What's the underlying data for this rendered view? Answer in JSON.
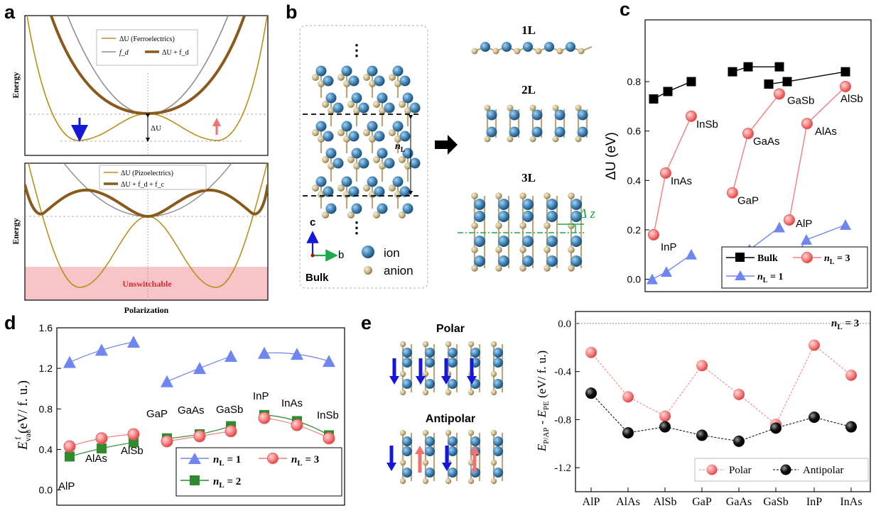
{
  "panels": {
    "a": {
      "label": "a",
      "top": {
        "ylabel": "Energy",
        "legend": [
          "ΔU (Ferroelectrics)",
          "f_d",
          "ΔU + f_d"
        ],
        "delta_label": "ΔU"
      },
      "bottom": {
        "ylabel": "Energy",
        "legend": [
          "ΔU (Pizoelectrics)",
          "ΔU + f_d + f_c"
        ],
        "unswitchable": "Unswitchable",
        "xlabel": "Polarization"
      }
    },
    "b": {
      "label": "b",
      "layers": [
        "1L",
        "2L",
        "3L"
      ],
      "nl": "n_L",
      "dz": "Δ z",
      "axis_c": "c",
      "axis_b": "b",
      "legend_ion": "ion",
      "legend_anion": "anion",
      "bulk": "Bulk",
      "ellipsis": "⋮"
    },
    "c": {
      "label": "c",
      "ylabel": "ΔU (eV)",
      "legend": [
        "Bulk",
        "n_L = 3",
        "n_L = 1"
      ],
      "point_labels": [
        "InP",
        "InAs",
        "InSb",
        "GaP",
        "GaAs",
        "GaSb",
        "AlP",
        "AlAs",
        "AlSb"
      ]
    },
    "d": {
      "label": "d",
      "ylabel": "E_vac^f (eV/ f. u.)",
      "legend": [
        "n_L = 1",
        "n_L = 3",
        "n_L = 2"
      ],
      "point_labels": [
        "AlP",
        "AlAs",
        "AlSb",
        "GaP",
        "GaAs",
        "GaSb",
        "InP",
        "InAs",
        "InSb"
      ]
    },
    "e": {
      "label": "e",
      "polar": "Polar",
      "antipolar": "Antipolar",
      "ylabel": "E_P/AP - E_PE (eV/ f. u.)",
      "nl": "n_L = 3",
      "legend": [
        "Polar",
        "Antipolar"
      ]
    }
  },
  "chart_data": [
    {
      "panel": "c",
      "type": "line",
      "ylabel": "ΔU (eV)",
      "ylim": [
        -0.05,
        1.05
      ],
      "yticks": [
        "0.0",
        "0.2",
        "0.4",
        "0.6",
        "0.8"
      ],
      "series": [
        {
          "name": "Bulk",
          "groups": [
            {
              "materials": [
                "InP",
                "InAs",
                "InSb"
              ],
              "values": [
                0.73,
                0.76,
                0.8
              ]
            },
            {
              "materials": [
                "GaP",
                "GaAs",
                "GaSb"
              ],
              "values": [
                0.84,
                0.86,
                0.86
              ]
            },
            {
              "materials": [
                "AlP",
                "AlAs",
                "AlSb"
              ],
              "values": [
                0.79,
                0.8,
                0.84
              ]
            }
          ]
        },
        {
          "name": "n_L = 3",
          "groups": [
            {
              "materials": [
                "InP",
                "InAs",
                "InSb"
              ],
              "values": [
                0.18,
                0.43,
                0.66
              ]
            },
            {
              "materials": [
                "GaP",
                "GaAs",
                "GaSb"
              ],
              "values": [
                0.35,
                0.59,
                0.75
              ]
            },
            {
              "materials": [
                "AlP",
                "AlAs",
                "AlSb"
              ],
              "values": [
                0.24,
                0.63,
                0.78
              ]
            }
          ]
        },
        {
          "name": "n_L = 1",
          "groups": [
            {
              "materials": [
                "InP",
                "InAs",
                "InSb"
              ],
              "values": [
                0.0,
                0.03,
                0.1
              ]
            },
            {
              "materials": [
                "GaP",
                "GaAs",
                "GaSb"
              ],
              "values": [
                0.02,
                0.12,
                0.21
              ]
            },
            {
              "materials": [
                "AlP",
                "AlAs",
                "AlSb"
              ],
              "values": [
                0.05,
                0.16,
                0.22
              ]
            }
          ]
        }
      ]
    },
    {
      "panel": "d",
      "type": "line",
      "ylabel": "E_vac^f (eV/ f. u.)",
      "ylim": [
        -0.15,
        1.6
      ],
      "yticks": [
        "0.0",
        "0.4",
        "0.8",
        "1.2",
        "1.6"
      ],
      "categories": [
        "AlP",
        "AlAs",
        "AlSb",
        "GaP",
        "GaAs",
        "GaSb",
        "InP",
        "InAs",
        "InSb"
      ],
      "series": [
        {
          "name": "n_L = 1",
          "values": [
            1.26,
            1.38,
            1.46,
            1.07,
            1.2,
            1.32,
            1.35,
            1.34,
            1.27
          ]
        },
        {
          "name": "n_L = 3",
          "values": [
            0.43,
            0.51,
            0.55,
            0.48,
            0.53,
            0.58,
            0.71,
            0.64,
            0.51
          ]
        },
        {
          "name": "n_L = 2",
          "values": [
            0.33,
            0.41,
            0.47,
            0.51,
            0.55,
            0.63,
            0.74,
            0.68,
            0.54
          ]
        }
      ]
    },
    {
      "panel": "e",
      "type": "line",
      "ylabel": "E_P/AP - E_PE (eV/ f. u.)",
      "ylim": [
        -1.4,
        0.1
      ],
      "yticks": [
        "0.0",
        "-0.4",
        "-0.8",
        "-1.2"
      ],
      "categories": [
        "AlP",
        "AlAs",
        "AlSb",
        "GaP",
        "GaAs",
        "GaSb",
        "InP",
        "InAs"
      ],
      "series": [
        {
          "name": "Polar",
          "values": [
            -0.24,
            -0.61,
            -0.77,
            -0.35,
            -0.59,
            -0.84,
            -0.18,
            -0.43
          ]
        },
        {
          "name": "Antipolar",
          "values": [
            -0.58,
            -0.91,
            -0.86,
            -0.93,
            -0.98,
            -0.87,
            -0.78,
            -0.86
          ]
        }
      ]
    }
  ],
  "colors": {
    "bulk": "#000000",
    "n3": "#f47c7c",
    "n3_edge": "#e85a5a",
    "n1": "#6f86f0",
    "n2": "#2e8b2e",
    "gold": "#b8901a",
    "brown": "#8a5a1c",
    "gray": "#8c8c8c",
    "pink": "#f7c5c8",
    "ion": "#3f84b5",
    "anion": "#c9b88a",
    "down_arrow": "#1717d8",
    "up_arrow": "#f07272",
    "dz": "#1aaa4a"
  }
}
